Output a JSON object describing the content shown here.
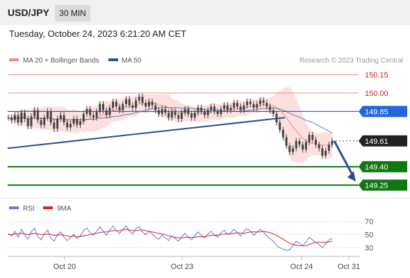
{
  "header": {
    "pair": "USD/JPY",
    "timeframe": "30 MIN"
  },
  "datetime": "Tuesday, October 24, 2023 6:21:20 AM CET",
  "legend": {
    "ma20_label": "MA 20 + Bollinger Bands",
    "ma50_label": "MA 50",
    "credit": "Research © 2023 Trading Central"
  },
  "rsi_legend": {
    "rsi_label": "RSI",
    "ma_label": "9MA"
  },
  "colors": {
    "ma20": "#f08a8a",
    "ma50": "#2c4f8a",
    "bollinger_fill": "#fbdada",
    "candle": "#444444",
    "current_price": "#222222",
    "pivot": "#2266dd",
    "support": "#117711",
    "resistance": "#f08a8a",
    "rsi": "#6677dd",
    "rsi_ma": "#dd2222"
  },
  "chart_data": [
    {
      "type": "candlestick",
      "title": "",
      "ylim": [
        149.19,
        150.22
      ],
      "x_ticks": [
        "Oct 20",
        "Oct 23",
        "Oct 24",
        "Oct 31"
      ],
      "levels": [
        {
          "label": "150.15",
          "value": 150.15,
          "kind": "resistance"
        },
        {
          "label": "150.00",
          "value": 150.0,
          "kind": "resistance"
        },
        {
          "label": "149.85",
          "value": 149.85,
          "kind": "pivot"
        },
        {
          "label": "149.61",
          "value": 149.61,
          "kind": "current"
        },
        {
          "label": "149.40",
          "value": 149.4,
          "kind": "support"
        },
        {
          "label": "149.25",
          "value": 149.25,
          "kind": "support"
        }
      ],
      "current_price": 149.61,
      "trendline": {
        "from": [
          "Oct 19",
          149.55
        ],
        "to": [
          "Oct 24",
          149.8
        ]
      },
      "forecast_arrow": {
        "from": 149.61,
        "to": 149.28
      },
      "close_series": [
        149.8,
        149.78,
        149.82,
        149.76,
        149.84,
        149.79,
        149.73,
        149.81,
        149.86,
        149.78,
        149.74,
        149.8,
        149.85,
        149.76,
        149.71,
        149.79,
        149.82,
        149.76,
        149.72,
        149.75,
        149.79,
        149.74,
        149.77,
        149.83,
        149.87,
        149.82,
        149.8,
        149.85,
        149.91,
        149.86,
        149.82,
        149.88,
        149.93,
        149.89,
        149.86,
        149.91,
        149.95,
        149.9,
        149.88,
        149.94,
        149.97,
        149.92,
        149.89,
        149.93,
        149.9,
        149.86,
        149.83,
        149.87,
        149.84,
        149.8,
        149.85,
        149.82,
        149.79,
        149.84,
        149.87,
        149.83,
        149.8,
        149.84,
        149.88,
        149.85,
        149.82,
        149.86,
        149.89,
        149.85,
        149.83,
        149.87,
        149.9,
        149.86,
        149.88,
        149.92,
        149.89,
        149.86,
        149.9,
        149.93,
        149.91,
        149.88,
        149.91,
        149.94,
        149.92,
        149.89,
        149.86,
        149.83,
        149.76,
        149.7,
        149.64,
        149.57,
        149.52,
        149.55,
        149.61,
        149.58,
        149.54,
        149.6,
        149.66,
        149.62,
        149.58,
        149.55,
        149.49,
        149.53,
        149.58,
        149.61
      ]
    },
    {
      "type": "line",
      "title": "RSI",
      "ylim": [
        20,
        78
      ],
      "y_ticks": [
        70,
        50,
        30
      ],
      "series": [
        {
          "name": "RSI",
          "values": [
            52,
            48,
            55,
            46,
            58,
            50,
            43,
            54,
            60,
            47,
            42,
            51,
            57,
            45,
            40,
            50,
            54,
            46,
            41,
            45,
            50,
            44,
            48,
            56,
            60,
            53,
            49,
            55,
            62,
            55,
            49,
            57,
            63,
            56,
            52,
            58,
            63,
            55,
            51,
            59,
            62,
            54,
            50,
            55,
            51,
            46,
            43,
            49,
            45,
            41,
            48,
            44,
            40,
            47,
            52,
            46,
            42,
            48,
            54,
            49,
            45,
            51,
            55,
            49,
            46,
            53,
            57,
            50,
            53,
            58,
            53,
            48,
            55,
            59,
            55,
            49,
            54,
            58,
            54,
            48,
            44,
            40,
            34,
            30,
            28,
            26,
            27,
            33,
            40,
            37,
            33,
            39,
            46,
            42,
            38,
            35,
            30,
            36,
            42,
            44
          ]
        },
        {
          "name": "9MA",
          "values": [
            50,
            50,
            51,
            51,
            52,
            51,
            50,
            51,
            52,
            51,
            50,
            50,
            51,
            50,
            49,
            49,
            50,
            49,
            48,
            47,
            48,
            47,
            47,
            48,
            49,
            50,
            51,
            52,
            53,
            54,
            54,
            55,
            56,
            56,
            56,
            57,
            58,
            57,
            56,
            56,
            57,
            57,
            56,
            55,
            54,
            53,
            52,
            51,
            50,
            48,
            47,
            46,
            45,
            45,
            46,
            46,
            46,
            46,
            47,
            47,
            47,
            48,
            49,
            49,
            49,
            50,
            51,
            51,
            51,
            52,
            53,
            52,
            52,
            53,
            54,
            54,
            54,
            54,
            55,
            54,
            53,
            51,
            49,
            46,
            43,
            40,
            37,
            35,
            34,
            33,
            33,
            33,
            35,
            37,
            38,
            39,
            38,
            38,
            39,
            40
          ]
        }
      ]
    }
  ]
}
